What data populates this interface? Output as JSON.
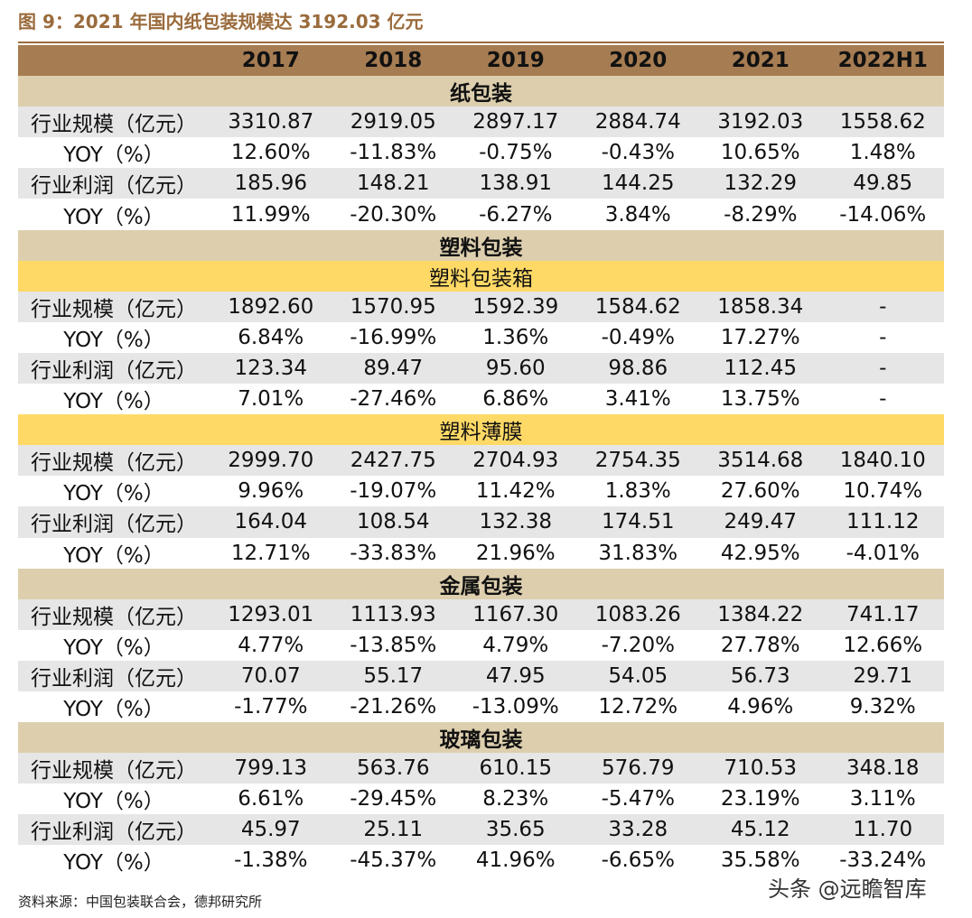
{
  "title": "图 9：2021 年国内纸包装规模达 3192.03 亿元",
  "table": {
    "header": [
      "2017",
      "2018",
      "2019",
      "2020",
      "2021",
      "2022H1"
    ],
    "rows": [
      {
        "section": "纸包装"
      },
      {
        "label": "行业规模（亿元）",
        "cells": [
          "3310.87",
          "2919.05",
          "2897.17",
          "2884.74",
          "3192.03",
          "1558.62"
        ]
      },
      {
        "label": "YOY（%）",
        "cells": [
          "12.60%",
          "-11.83%",
          "-0.75%",
          "-0.43%",
          "10.65%",
          "1.48%"
        ]
      },
      {
        "label": "行业利润（亿元）",
        "cells": [
          "185.96",
          "148.21",
          "138.91",
          "144.25",
          "132.29",
          "49.85"
        ]
      },
      {
        "label": "YOY（%）",
        "cells": [
          "11.99%",
          "-20.30%",
          "-6.27%",
          "3.84%",
          "-8.29%",
          "-14.06%"
        ]
      },
      {
        "section": "塑料包装"
      },
      {
        "subsection": "塑料包装箱"
      },
      {
        "label": "行业规模（亿元）",
        "cells": [
          "1892.60",
          "1570.95",
          "1592.39",
          "1584.62",
          "1858.34",
          "-"
        ]
      },
      {
        "label": "YOY（%）",
        "cells": [
          "6.84%",
          "-16.99%",
          "1.36%",
          "-0.49%",
          "17.27%",
          "-"
        ]
      },
      {
        "label": "行业利润（亿元）",
        "cells": [
          "123.34",
          "89.47",
          "95.60",
          "98.86",
          "112.45",
          "-"
        ]
      },
      {
        "label": "YOY（%）",
        "cells": [
          "7.01%",
          "-27.46%",
          "6.86%",
          "3.41%",
          "13.75%",
          "-"
        ]
      },
      {
        "subsection": "塑料薄膜"
      },
      {
        "label": "行业规模（亿元）",
        "cells": [
          "2999.70",
          "2427.75",
          "2704.93",
          "2754.35",
          "3514.68",
          "1840.10"
        ]
      },
      {
        "label": "YOY（%）",
        "cells": [
          "9.96%",
          "-19.07%",
          "11.42%",
          "1.83%",
          "27.60%",
          "10.74%"
        ]
      },
      {
        "label": "行业利润（亿元）",
        "cells": [
          "164.04",
          "108.54",
          "132.38",
          "174.51",
          "249.47",
          "111.12"
        ]
      },
      {
        "label": "YOY（%）",
        "cells": [
          "12.71%",
          "-33.83%",
          "21.96%",
          "31.83%",
          "42.95%",
          "-4.01%"
        ]
      },
      {
        "section": "金属包装"
      },
      {
        "label": "行业规模（亿元）",
        "cells": [
          "1293.01",
          "1113.93",
          "1167.30",
          "1083.26",
          "1384.22",
          "741.17"
        ]
      },
      {
        "label": "YOY（%）",
        "cells": [
          "4.77%",
          "-13.85%",
          "4.79%",
          "-7.20%",
          "27.78%",
          "12.66%"
        ]
      },
      {
        "label": "行业利润（亿元）",
        "cells": [
          "70.07",
          "55.17",
          "47.95",
          "54.05",
          "56.73",
          "29.71"
        ]
      },
      {
        "label": "YOY（%）",
        "cells": [
          "-1.77%",
          "-21.26%",
          "-13.09%",
          "12.72%",
          "4.96%",
          "9.32%"
        ]
      },
      {
        "section": "玻璃包装"
      },
      {
        "label": "行业规模（亿元）",
        "cells": [
          "799.13",
          "563.76",
          "610.15",
          "576.79",
          "710.53",
          "348.18"
        ]
      },
      {
        "label": "YOY（%）",
        "cells": [
          "6.61%",
          "-29.45%",
          "8.23%",
          "-5.47%",
          "23.19%",
          "3.11%"
        ]
      },
      {
        "label": "行业利润（亿元）",
        "cells": [
          "45.97",
          "25.11",
          "35.65",
          "33.28",
          "45.12",
          "11.70"
        ]
      },
      {
        "label": "YOY（%）",
        "cells": [
          "-1.38%",
          "-45.37%",
          "41.96%",
          "-6.65%",
          "35.58%",
          "-33.24%"
        ]
      }
    ]
  },
  "source": "资料来源：中国包装联合会，德邦研究所",
  "watermark": "头条 @远瞻智库"
}
